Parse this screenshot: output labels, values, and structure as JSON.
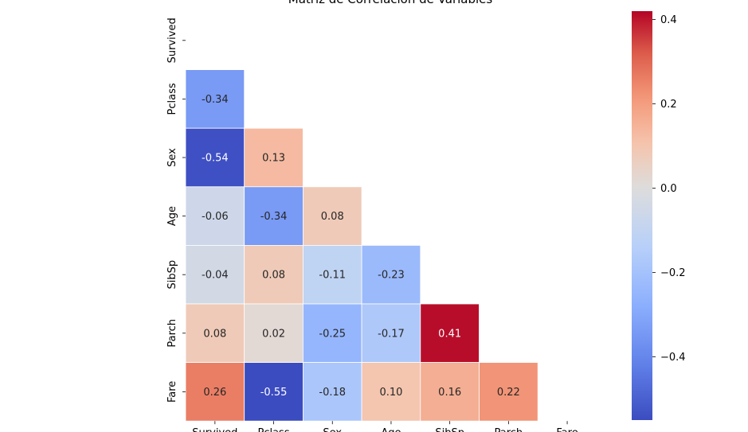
{
  "chart_data": {
    "type": "heatmap",
    "title": "Matriz de Correlación de Variables",
    "variables": [
      "Survived",
      "Pclass",
      "Sex",
      "Age",
      "SibSp",
      "Parch",
      "Fare"
    ],
    "mask": "upper-triangle-including-diagonal",
    "values": [
      [
        null,
        null,
        null,
        null,
        null,
        null,
        null
      ],
      [
        -0.34,
        null,
        null,
        null,
        null,
        null,
        null
      ],
      [
        -0.54,
        0.13,
        null,
        null,
        null,
        null,
        null
      ],
      [
        -0.06,
        -0.34,
        0.08,
        null,
        null,
        null,
        null
      ],
      [
        -0.04,
        0.08,
        -0.11,
        -0.23,
        null,
        null,
        null
      ],
      [
        0.08,
        0.02,
        -0.25,
        -0.17,
        0.41,
        null,
        null
      ],
      [
        0.26,
        -0.55,
        -0.18,
        0.1,
        0.16,
        0.22,
        null
      ]
    ],
    "value_format": "2 decimals",
    "colormap": "coolwarm",
    "colorbar": {
      "min": -0.55,
      "max": 0.42,
      "ticks": [
        0.4,
        0.2,
        0.0,
        -0.2,
        -0.4
      ],
      "tick_labels": [
        "0.4",
        "0.2",
        "0.0",
        "−0.2",
        "−0.4"
      ]
    },
    "grid": false,
    "legend": "colorbar-right"
  }
}
